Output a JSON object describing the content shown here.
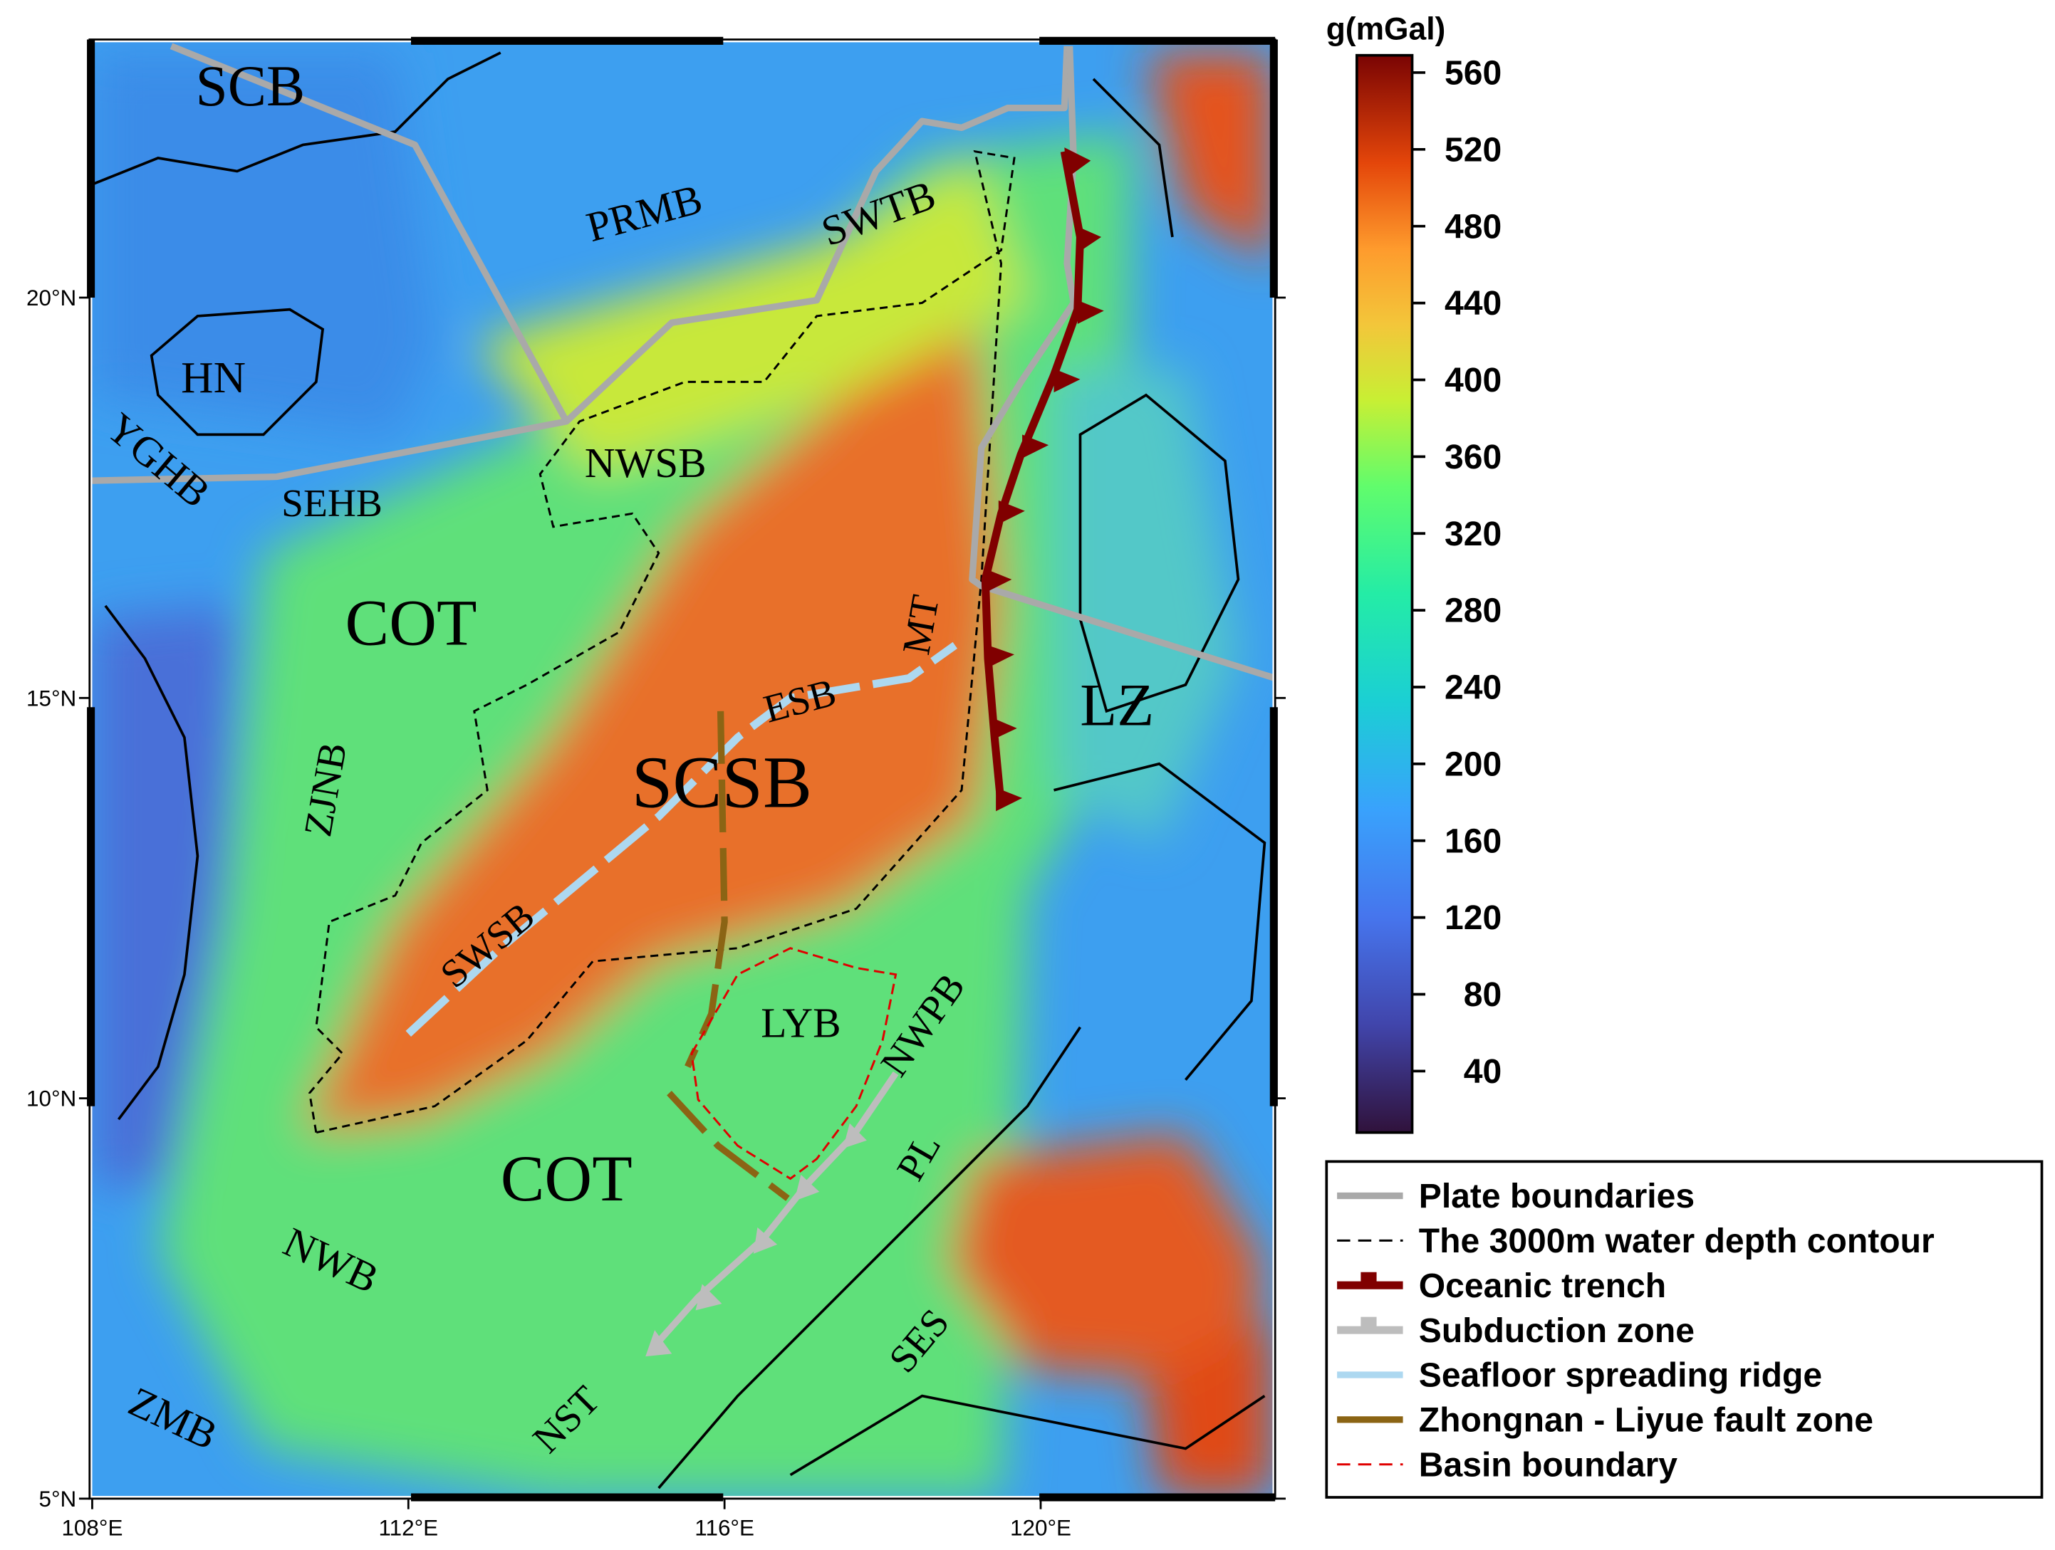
{
  "map": {
    "labels": [
      "SCB",
      "HN",
      "YGHB",
      "SEHB",
      "PRMB",
      "SWTB",
      "NWSB",
      "COT",
      "ZJNB",
      "ESB",
      "MT",
      "SCSB",
      "LZ",
      "SWSB",
      "LYB",
      "NWPB",
      "COT",
      "PL",
      "NWB",
      "SES",
      "ZMB",
      "NST"
    ],
    "lon_ticks": [
      "108°E",
      "112°E",
      "116°E",
      "120°E"
    ],
    "lat_ticks": [
      "20°N",
      "15°N",
      "10°N",
      "5°N"
    ]
  },
  "colorbar": {
    "title": "g(mGal)",
    "lim": [
      8,
      569
    ],
    "ticks": [
      40,
      80,
      120,
      160,
      200,
      240,
      280,
      320,
      360,
      400,
      440,
      480,
      520,
      560
    ]
  },
  "legend": {
    "items": [
      "Plate boundaries",
      "The 3000m water depth contour",
      "Oceanic trench",
      "Subduction zone",
      "Seafloor spreading ridge",
      "Zhongnan - Liyue fault zone",
      "Basin boundary"
    ]
  }
}
